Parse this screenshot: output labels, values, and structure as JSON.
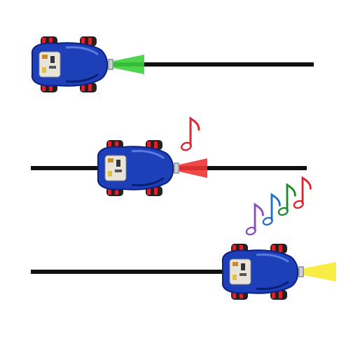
{
  "colors": {
    "background": "#ffffff",
    "track": "#111111",
    "car_body": "#1d3fb8",
    "car_body_dark": "#0d2180",
    "wheel": "#222222",
    "wheel_accent": "#d8242a",
    "light_green": "#3ccf3c",
    "light_red": "#ee3333",
    "light_yellow": "#f8ec3a",
    "note_red": "#e0242e",
    "note_green": "#1a8a2a",
    "note_blue": "#1f6fc9",
    "note_purple": "#8a4cc0"
  },
  "scenes": [
    {
      "name": "scene-1",
      "headlight": "green-icon",
      "sound": "none"
    },
    {
      "name": "scene-2",
      "headlight": "red-icon",
      "sound": "single-music-note-icon"
    },
    {
      "name": "scene-3",
      "headlight": "yellow-icon",
      "sound": "four-music-notes-icon"
    }
  ]
}
